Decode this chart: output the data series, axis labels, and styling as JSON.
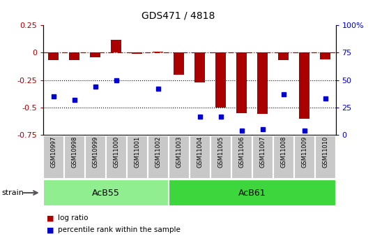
{
  "title": "GDS471 / 4818",
  "samples": [
    "GSM10997",
    "GSM10998",
    "GSM10999",
    "GSM11000",
    "GSM11001",
    "GSM11002",
    "GSM11003",
    "GSM11004",
    "GSM11005",
    "GSM11006",
    "GSM11007",
    "GSM11008",
    "GSM11009",
    "GSM11010"
  ],
  "log_ratio": [
    -0.07,
    -0.07,
    -0.04,
    0.12,
    -0.01,
    0.01,
    -0.2,
    -0.27,
    -0.5,
    -0.55,
    -0.56,
    -0.07,
    -0.6,
    -0.06
  ],
  "pct_rank": [
    35,
    32,
    44,
    50,
    null,
    42,
    null,
    17,
    17,
    4,
    5,
    37,
    4,
    33
  ],
  "groups": [
    {
      "label": "AcB55",
      "start": 0,
      "end": 5,
      "color": "#90EE90"
    },
    {
      "label": "AcB61",
      "start": 6,
      "end": 13,
      "color": "#3DD63D"
    }
  ],
  "bar_color": "#AA0000",
  "dot_color": "#0000CC",
  "ylim_left": [
    -0.75,
    0.25
  ],
  "ylim_right": [
    0,
    100
  ],
  "yticks_left": [
    -0.75,
    -0.5,
    -0.25,
    0.0,
    0.25
  ],
  "yticks_right": [
    0,
    25,
    50,
    75,
    100
  ],
  "hline_y": 0.0,
  "dotted_lines": [
    -0.25,
    -0.5
  ],
  "legend_items": [
    {
      "label": "log ratio",
      "color": "#AA0000"
    },
    {
      "label": "percentile rank within the sample",
      "color": "#0000CC"
    }
  ],
  "strain_label": "strain",
  "xticklabel_bg": "#C8C8C8",
  "plot_bg": "#FFFFFF"
}
